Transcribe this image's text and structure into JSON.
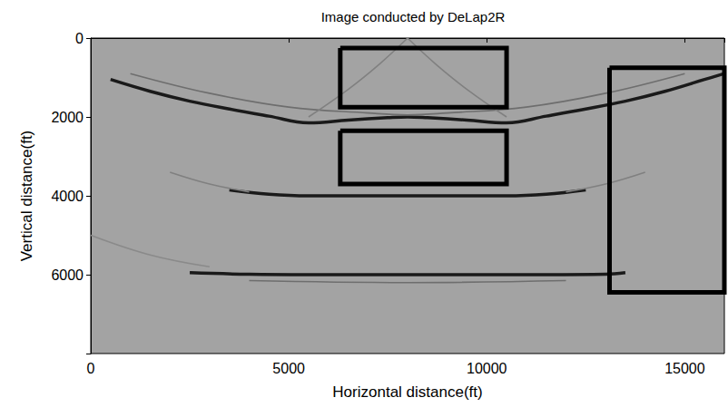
{
  "chart_data": {
    "type": "line",
    "title": "Image conducted by DeLap2R",
    "x_label": "Horizontal distance(ft)",
    "y_label": "Vertical distance(ft)",
    "xlim": [
      0,
      16000
    ],
    "ylim": [
      0,
      8000
    ],
    "xticks": [
      0,
      5000,
      10000,
      15000
    ],
    "yticks": [
      0,
      2000,
      4000,
      6000
    ],
    "grid": false,
    "series": [
      {
        "color": "#1a1a1a",
        "line_style": "thick",
        "x": [
          500,
          1500,
          2500,
          3500,
          4500,
          5500,
          6500,
          7500,
          8000,
          8500,
          9500,
          10500,
          11500,
          12500,
          13500,
          14500,
          15500,
          16000
        ],
        "values": [
          1050,
          1350,
          1600,
          1800,
          1980,
          2150,
          2080,
          2020,
          2000,
          2020,
          2080,
          2150,
          1980,
          1800,
          1600,
          1350,
          1050,
          900
        ]
      },
      {
        "color": "#6e6e6e",
        "line_style": "thin",
        "x": [
          1000,
          3000,
          5000,
          7000,
          8000,
          9000,
          11000,
          13000,
          15000
        ],
        "values": [
          900,
          1400,
          1750,
          1900,
          1950,
          1900,
          1750,
          1400,
          900
        ]
      },
      {
        "color": "#808080",
        "line_style": "thin",
        "x": [
          5500,
          6500,
          7300,
          8000
        ],
        "values": [
          2000,
          1300,
          650,
          0
        ]
      },
      {
        "color": "#808080",
        "line_style": "thin",
        "x": [
          8000,
          8700,
          9500,
          10500
        ],
        "values": [
          0,
          650,
          1300,
          2000
        ]
      },
      {
        "color": "#1a1a1a",
        "line_style": "thick",
        "x": [
          3500,
          4500,
          5500,
          6500,
          7500,
          8500,
          9500,
          10500,
          11500,
          12500
        ],
        "values": [
          3850,
          3960,
          4000,
          4000,
          4000,
          4000,
          4000,
          4000,
          3960,
          3850
        ]
      },
      {
        "color": "#808080",
        "line_style": "thin",
        "x": [
          2000,
          3000,
          4000
        ],
        "values": [
          3400,
          3700,
          3900
        ]
      },
      {
        "color": "#808080",
        "line_style": "thin",
        "x": [
          12000,
          13000,
          14000
        ],
        "values": [
          3900,
          3700,
          3400
        ]
      },
      {
        "color": "#1a1a1a",
        "line_style": "thick",
        "x": [
          2500,
          4000,
          5500,
          7000,
          8500,
          10000,
          11500,
          13000,
          13500
        ],
        "values": [
          5950,
          5990,
          6000,
          6000,
          6000,
          6000,
          6000,
          5990,
          5950
        ]
      },
      {
        "color": "#6e6e6e",
        "line_style": "thin",
        "x": [
          4000,
          8000,
          12000
        ],
        "values": [
          6150,
          6200,
          6150
        ]
      },
      {
        "color": "#8a8a8a",
        "line_style": "thin",
        "x": [
          0,
          1500,
          3000
        ],
        "values": [
          5000,
          5500,
          5800
        ]
      }
    ],
    "boxes": [
      {
        "x": [
          6300,
          10500
        ],
        "y": [
          250,
          1750
        ]
      },
      {
        "x": [
          6300,
          10500
        ],
        "y": [
          2350,
          3700
        ]
      },
      {
        "x": [
          13100,
          16000
        ],
        "y": [
          750,
          6450
        ]
      }
    ]
  }
}
